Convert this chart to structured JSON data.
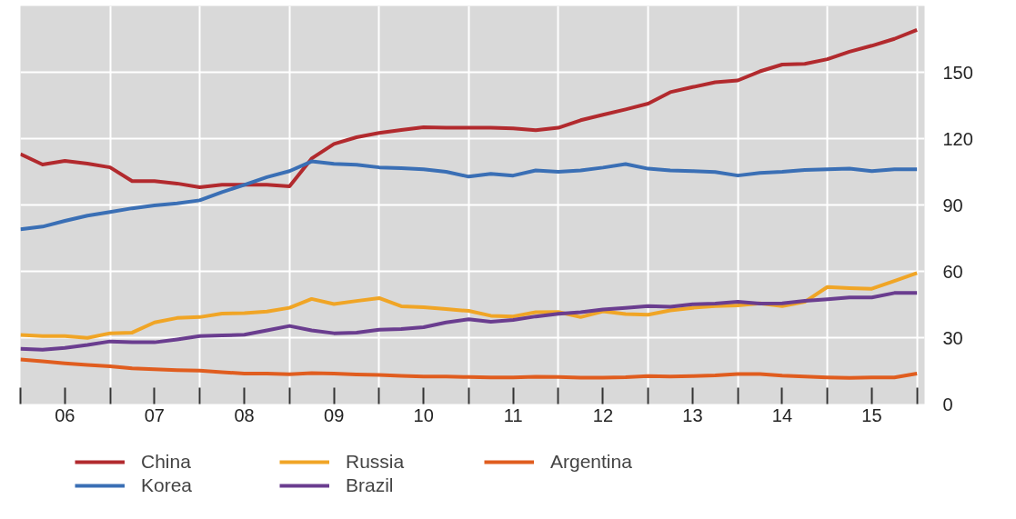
{
  "chart_data": {
    "type": "line",
    "x": [
      "2006-01",
      "2006-04",
      "2006-07",
      "2006-10",
      "2007-01",
      "2007-04",
      "2007-07",
      "2007-10",
      "2008-01",
      "2008-04",
      "2008-07",
      "2008-10",
      "2009-01",
      "2009-04",
      "2009-07",
      "2009-10",
      "2010-01",
      "2010-04",
      "2010-07",
      "2010-10",
      "2011-01",
      "2011-04",
      "2011-07",
      "2011-10",
      "2012-01",
      "2012-04",
      "2012-07",
      "2012-10",
      "2013-01",
      "2013-04",
      "2013-07",
      "2013-10",
      "2014-01",
      "2014-04",
      "2014-07",
      "2014-10",
      "2015-01",
      "2015-04",
      "2015-07",
      "2015-10",
      "2016-01"
    ],
    "series": [
      {
        "name": "China",
        "color": "#b22a2e",
        "values": [
          113.0,
          108.3,
          109.9,
          108.7,
          107.0,
          100.8,
          100.8,
          99.7,
          98.0,
          99.1,
          99.1,
          99.1,
          98.4,
          111.0,
          117.6,
          120.6,
          122.6,
          123.9,
          125.1,
          124.9,
          124.9,
          124.9,
          124.6,
          123.8,
          124.9,
          128.3,
          130.8,
          133.2,
          135.8,
          141.0,
          143.3,
          145.5,
          146.3,
          150.4,
          153.5,
          153.8,
          155.9,
          159.3,
          162.0,
          165.1,
          169.2
        ]
      },
      {
        "name": "Russia",
        "color": "#f0a526",
        "values": [
          31.2,
          30.7,
          30.7,
          29.9,
          32.0,
          32.3,
          36.9,
          38.9,
          39.3,
          40.9,
          41.1,
          41.8,
          43.5,
          47.5,
          45.2,
          46.6,
          47.9,
          44.2,
          43.8,
          42.9,
          42.1,
          39.9,
          39.6,
          41.5,
          41.6,
          39.3,
          41.9,
          40.7,
          40.4,
          42.3,
          43.5,
          44.3,
          44.6,
          45.5,
          44.3,
          46.2,
          52.9,
          52.4,
          52.1,
          55.6,
          59.2
        ]
      },
      {
        "name": "Argentina",
        "color": "#e05d1f",
        "values": [
          20.1,
          19.3,
          18.4,
          17.7,
          17.1,
          16.1,
          15.7,
          15.3,
          15.1,
          14.4,
          13.8,
          13.8,
          13.5,
          14.0,
          13.8,
          13.4,
          13.1,
          12.7,
          12.4,
          12.4,
          12.2,
          12.0,
          12.0,
          12.3,
          12.2,
          11.9,
          11.9,
          12.1,
          12.6,
          12.4,
          12.6,
          12.9,
          13.6,
          13.6,
          12.8,
          12.4,
          12.0,
          11.8,
          12.0,
          12.0,
          13.8
        ]
      },
      {
        "name": "Korea",
        "color": "#3a6fb5",
        "values": [
          79.0,
          80.2,
          82.8,
          85.2,
          86.8,
          88.5,
          89.8,
          90.7,
          92.1,
          95.8,
          99.1,
          102.6,
          105.3,
          109.7,
          108.6,
          108.2,
          107.0,
          106.6,
          106.1,
          105.0,
          102.8,
          104.1,
          103.3,
          105.6,
          105.0,
          105.6,
          106.9,
          108.5,
          106.4,
          105.6,
          105.3,
          104.9,
          103.3,
          104.5,
          105.0,
          105.8,
          106.1,
          106.4,
          105.3,
          106.1,
          106.1
        ]
      },
      {
        "name": "Brazil",
        "color": "#6a3d8f",
        "values": [
          25.0,
          24.6,
          25.4,
          26.7,
          28.3,
          27.9,
          27.9,
          29.2,
          30.7,
          31.0,
          31.3,
          33.3,
          35.3,
          33.3,
          32.0,
          32.3,
          33.6,
          33.9,
          34.7,
          36.9,
          38.3,
          37.2,
          38.0,
          39.6,
          40.8,
          41.5,
          42.7,
          43.5,
          44.3,
          44.0,
          45.1,
          45.4,
          46.2,
          45.4,
          45.5,
          46.6,
          47.4,
          48.2,
          48.2,
          50.2,
          50.2
        ]
      }
    ],
    "xlim": [
      "2006-01",
      "2016-02"
    ],
    "xticks": [
      {
        "value": "2006-01",
        "label": null
      },
      {
        "value": "2006-07",
        "label": "06"
      },
      {
        "value": "2007-01",
        "label": null
      },
      {
        "value": "2007-07",
        "label": "07"
      },
      {
        "value": "2008-01",
        "label": null
      },
      {
        "value": "2008-07",
        "label": "08"
      },
      {
        "value": "2009-01",
        "label": null
      },
      {
        "value": "2009-07",
        "label": "09"
      },
      {
        "value": "2010-01",
        "label": null
      },
      {
        "value": "2010-07",
        "label": "10"
      },
      {
        "value": "2011-01",
        "label": null
      },
      {
        "value": "2011-07",
        "label": "11"
      },
      {
        "value": "2012-01",
        "label": null
      },
      {
        "value": "2012-07",
        "label": "12"
      },
      {
        "value": "2013-01",
        "label": null
      },
      {
        "value": "2013-07",
        "label": "13"
      },
      {
        "value": "2014-01",
        "label": null
      },
      {
        "value": "2014-07",
        "label": "14"
      },
      {
        "value": "2015-01",
        "label": null
      },
      {
        "value": "2015-07",
        "label": "15"
      },
      {
        "value": "2016-01",
        "label": null
      }
    ],
    "ylim": [
      0,
      180
    ],
    "yticks": [
      0,
      30,
      60,
      90,
      120,
      150
    ],
    "grid": true,
    "legend": "bottom",
    "line_style": "solid",
    "marker": "none"
  }
}
